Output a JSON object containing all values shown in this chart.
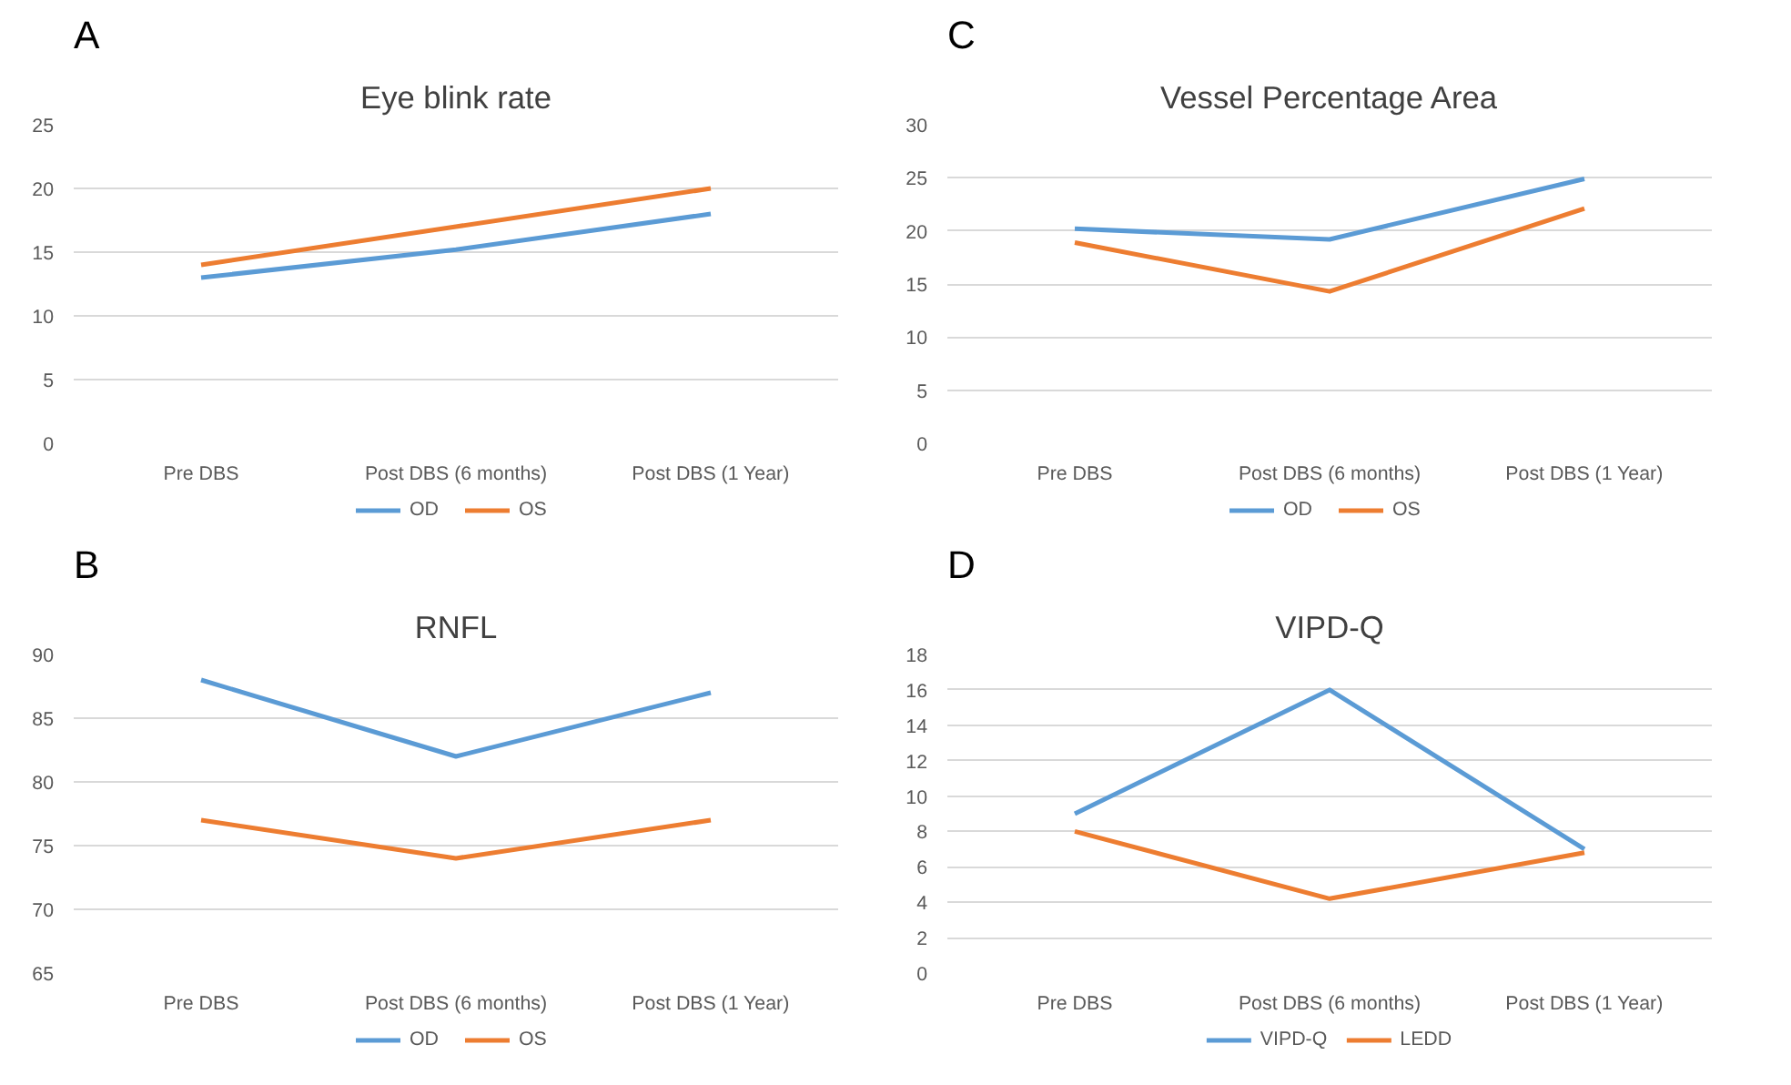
{
  "chart_data": [
    {
      "type": "line",
      "title": "Eye blink rate",
      "annotations": [
        "A"
      ],
      "categories": [
        "Pre DBS",
        "Post DBS (6 months)",
        "Post DBS (1 Year)"
      ],
      "ylim": [
        0,
        25
      ],
      "yticks": [
        0,
        5,
        10,
        15,
        20,
        25
      ],
      "grid": "y",
      "legend": "bottom",
      "series": [
        {
          "name": "OD",
          "color": "#5b9bd5",
          "values": [
            13,
            15.2,
            18
          ]
        },
        {
          "name": "OS",
          "color": "#ed7d31",
          "values": [
            14,
            17,
            20
          ]
        }
      ]
    },
    {
      "type": "line",
      "title": "Vessel Percentage Area",
      "annotations": [
        "C"
      ],
      "categories": [
        "Pre DBS",
        "Post DBS (6 months)",
        "Post DBS (1 Year)"
      ],
      "ylim": [
        0,
        30
      ],
      "yticks": [
        0,
        5,
        10,
        15,
        20,
        25,
        30
      ],
      "grid": "y",
      "legend": "bottom",
      "series": [
        {
          "name": "OD",
          "color": "#5b9bd5",
          "values": [
            20.2,
            19.2,
            24.9
          ]
        },
        {
          "name": "OS",
          "color": "#ed7d31",
          "values": [
            18.9,
            14.3,
            22.1
          ]
        }
      ]
    },
    {
      "type": "line",
      "title": "RNFL",
      "annotations": [
        "B"
      ],
      "categories": [
        "Pre DBS",
        "Post DBS (6 months)",
        "Post DBS (1 Year)"
      ],
      "ylim": [
        65,
        90
      ],
      "yticks": [
        65,
        70,
        75,
        80,
        85,
        90
      ],
      "grid": "y",
      "legend": "bottom",
      "series": [
        {
          "name": "OD",
          "color": "#5b9bd5",
          "values": [
            88,
            82,
            87
          ]
        },
        {
          "name": "OS",
          "color": "#ed7d31",
          "values": [
            77,
            74,
            77
          ]
        }
      ]
    },
    {
      "type": "line",
      "title": "VIPD-Q",
      "annotations": [
        "D"
      ],
      "categories": [
        "Pre DBS",
        "Post DBS (6 months)",
        "Post DBS (1 Year)"
      ],
      "ylim": [
        0,
        18
      ],
      "yticks": [
        0,
        2,
        4,
        6,
        8,
        10,
        12,
        14,
        16,
        18
      ],
      "grid": "y",
      "legend": "bottom",
      "series": [
        {
          "name": "VIPD-Q",
          "color": "#5b9bd5",
          "values": [
            9,
            16,
            7
          ]
        },
        {
          "name": "LEDD",
          "color": "#ed7d31",
          "values": [
            8,
            4.2,
            6.8
          ]
        }
      ]
    }
  ]
}
